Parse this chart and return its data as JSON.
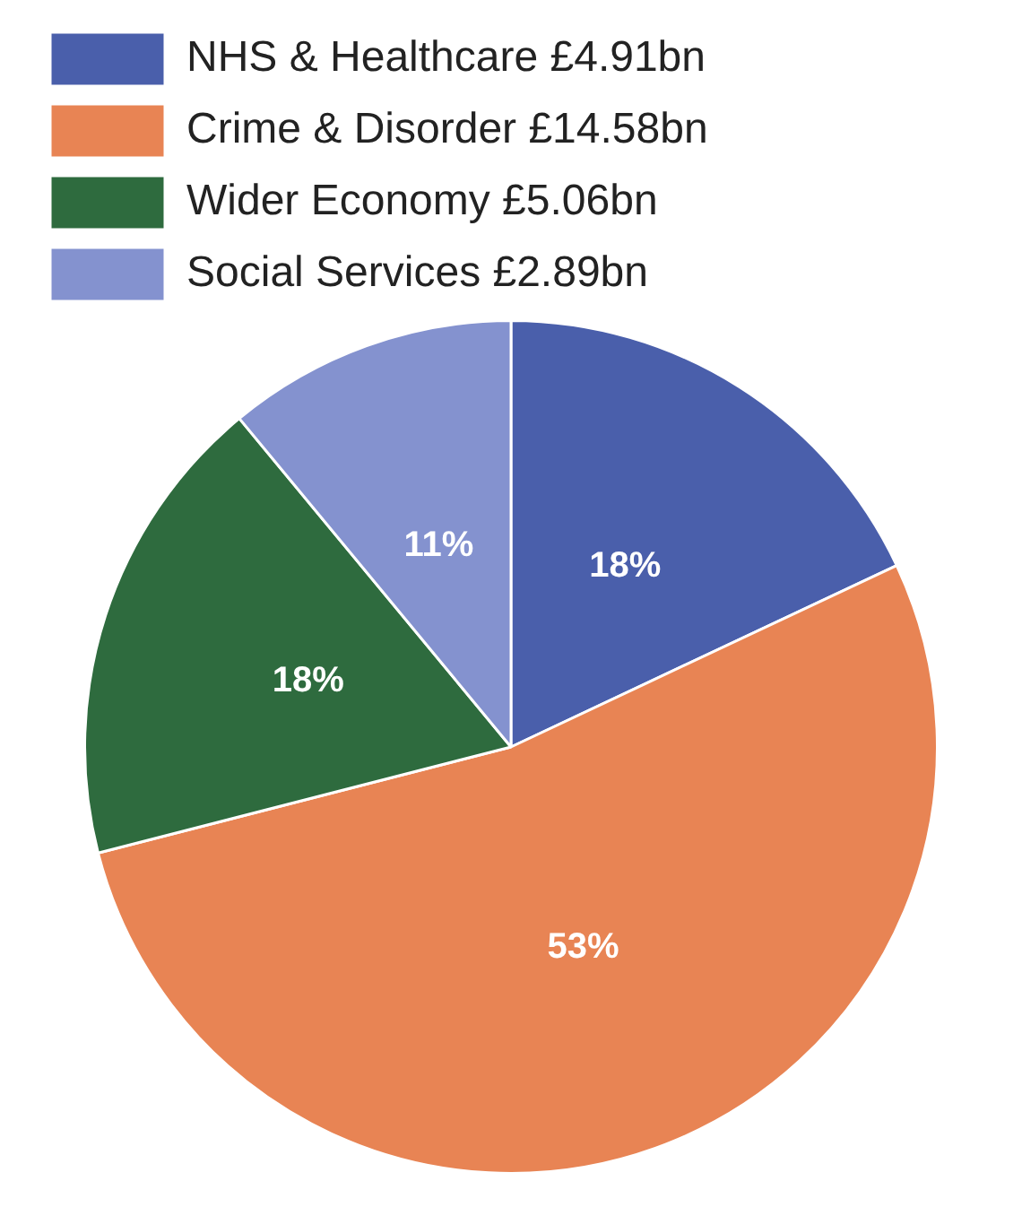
{
  "chart_data": {
    "type": "pie",
    "categories": [
      "NHS & Healthcare £4.91bn",
      "Crime & Disorder £14.58bn",
      "Wider Economy £5.06bn",
      "Social Services £2.89bn"
    ],
    "values": [
      18,
      53,
      18,
      11
    ],
    "colors": [
      "#4a5fab",
      "#e88454",
      "#2e6b3e",
      "#8492cf"
    ],
    "value_labels": [
      "18%",
      "53%",
      "18%",
      "11%"
    ],
    "legend": "top left"
  }
}
